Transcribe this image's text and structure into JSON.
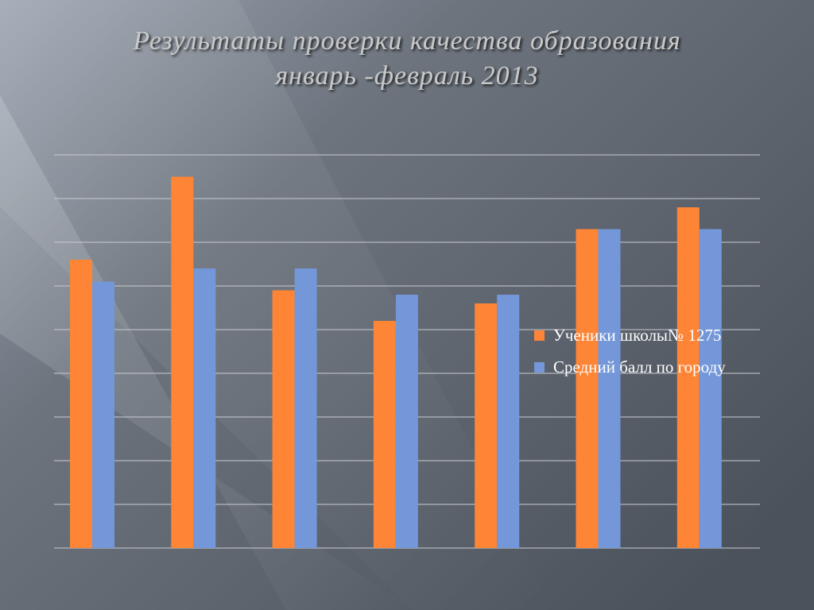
{
  "chart_data": {
    "type": "bar",
    "title": [
      "Результаты проверки качества образования",
      "январь -февраль 2013"
    ],
    "categories": [
      null,
      null,
      null,
      null,
      null,
      null,
      null
    ],
    "series": [
      {
        "name": "Ученики школы№ 1275",
        "color": "#fd8535",
        "values": [
          6.6,
          8.5,
          5.9,
          5.2,
          5.6,
          7.3,
          7.8
        ]
      },
      {
        "name": "Средний балл по городу",
        "color": "#7397d8",
        "values": [
          6.1,
          6.4,
          6.4,
          5.8,
          5.8,
          7.3,
          7.3
        ]
      }
    ],
    "ylim": [
      0,
      9
    ],
    "yticks": [
      0,
      1,
      2,
      3,
      4,
      5,
      6,
      7,
      8,
      9
    ],
    "grid": true,
    "legend": "right"
  }
}
